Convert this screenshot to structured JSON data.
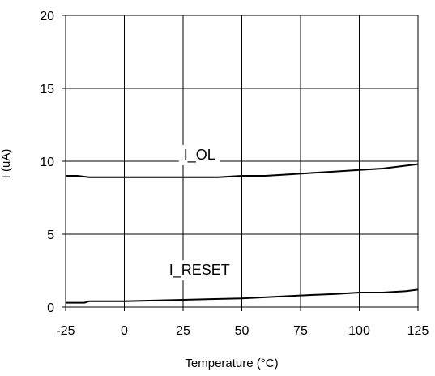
{
  "chart_data": {
    "type": "line",
    "title": "",
    "xlabel": "Temperature (°C)",
    "ylabel": "I (uA)",
    "xlim": [
      -25,
      125
    ],
    "ylim": [
      0,
      20
    ],
    "x_ticks": [
      "-25",
      "0",
      "25",
      "50",
      "75",
      "100",
      "125"
    ],
    "y_ticks": [
      "0",
      "5",
      "10",
      "15",
      "20"
    ],
    "grid": true,
    "legend": "none",
    "series": [
      {
        "name": "I_OL",
        "x": [
          -25,
          -20,
          -15,
          -10,
          0,
          10,
          20,
          30,
          40,
          50,
          60,
          70,
          80,
          90,
          100,
          110,
          120,
          125
        ],
        "y": [
          9.0,
          9.0,
          8.9,
          8.9,
          8.9,
          8.9,
          8.9,
          8.9,
          8.9,
          9.0,
          9.0,
          9.1,
          9.2,
          9.3,
          9.4,
          9.5,
          9.7,
          9.8
        ]
      },
      {
        "name": "I_RESET",
        "x": [
          -25,
          -17,
          -15,
          0,
          25,
          50,
          75,
          90,
          100,
          110,
          120,
          125
        ],
        "y": [
          0.3,
          0.3,
          0.4,
          0.4,
          0.5,
          0.6,
          0.8,
          0.9,
          1.0,
          1.0,
          1.1,
          1.2
        ]
      }
    ],
    "line_color": "#000000",
    "grid_color": "#000000"
  }
}
